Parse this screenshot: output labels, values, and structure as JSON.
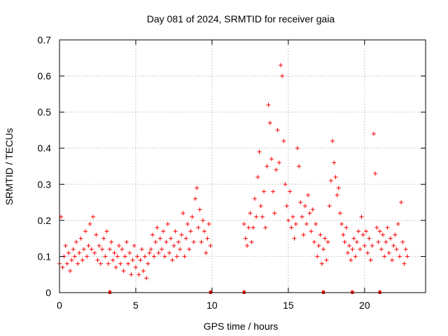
{
  "chart_data": {
    "type": "scatter",
    "title": "Day 081 of 2024, SRMTID for receiver gaia",
    "xlabel": "GPS time / hours",
    "ylabel": "SRMTID / TECUs",
    "xlim": [
      0,
      24
    ],
    "ylim": [
      0,
      0.7
    ],
    "xticks": [
      "0",
      "5",
      "10",
      "15",
      "20"
    ],
    "yticks": [
      "0",
      "0.1",
      "0.2",
      "0.3",
      "0.4",
      "0.5",
      "0.6",
      "0.7"
    ],
    "grid": true,
    "marker": "+",
    "marker_color": "#ff0000",
    "series": [
      {
        "name": "SRMTID",
        "points": [
          [
            0.0,
            0.08
          ],
          [
            0.1,
            0.21
          ],
          [
            0.2,
            0.07
          ],
          [
            0.3,
            0.1
          ],
          [
            0.4,
            0.13
          ],
          [
            0.5,
            0.08
          ],
          [
            0.6,
            0.11
          ],
          [
            0.7,
            0.06
          ],
          [
            0.8,
            0.09
          ],
          [
            0.9,
            0.12
          ],
          [
            1.0,
            0.1
          ],
          [
            1.1,
            0.14
          ],
          [
            1.2,
            0.08
          ],
          [
            1.3,
            0.11
          ],
          [
            1.4,
            0.15
          ],
          [
            1.5,
            0.09
          ],
          [
            1.6,
            0.12
          ],
          [
            1.7,
            0.17
          ],
          [
            1.8,
            0.1
          ],
          [
            1.9,
            0.13
          ],
          [
            2.0,
            0.19
          ],
          [
            2.1,
            0.12
          ],
          [
            2.2,
            0.21
          ],
          [
            2.3,
            0.11
          ],
          [
            2.4,
            0.16
          ],
          [
            2.5,
            0.09
          ],
          [
            2.6,
            0.13
          ],
          [
            2.7,
            0.08
          ],
          [
            2.8,
            0.12
          ],
          [
            2.9,
            0.15
          ],
          [
            3.0,
            0.1
          ],
          [
            3.1,
            0.17
          ],
          [
            3.2,
            0.08
          ],
          [
            3.3,
            0.12
          ],
          [
            3.4,
            0.14
          ],
          [
            3.5,
            0.09
          ],
          [
            3.6,
            0.11
          ],
          [
            3.7,
            0.07
          ],
          [
            3.8,
            0.1
          ],
          [
            3.9,
            0.13
          ],
          [
            4.0,
            0.08
          ],
          [
            4.1,
            0.12
          ],
          [
            4.2,
            0.06
          ],
          [
            4.3,
            0.1
          ],
          [
            4.4,
            0.14
          ],
          [
            4.5,
            0.08
          ],
          [
            4.6,
            0.11
          ],
          [
            4.7,
            0.05
          ],
          [
            4.8,
            0.09
          ],
          [
            4.9,
            0.13
          ],
          [
            5.0,
            0.07
          ],
          [
            5.1,
            0.1
          ],
          [
            5.2,
            0.05
          ],
          [
            5.3,
            0.09
          ],
          [
            5.4,
            0.12
          ],
          [
            5.5,
            0.06
          ],
          [
            5.6,
            0.1
          ],
          [
            5.7,
            0.04
          ],
          [
            5.8,
            0.08
          ],
          [
            5.9,
            0.11
          ],
          [
            6.0,
            0.12
          ],
          [
            6.1,
            0.16
          ],
          [
            6.2,
            0.1
          ],
          [
            6.3,
            0.14
          ],
          [
            6.4,
            0.18
          ],
          [
            6.5,
            0.11
          ],
          [
            6.6,
            0.15
          ],
          [
            6.7,
            0.12
          ],
          [
            6.8,
            0.17
          ],
          [
            6.9,
            0.1
          ],
          [
            7.0,
            0.14
          ],
          [
            7.1,
            0.19
          ],
          [
            7.2,
            0.11
          ],
          [
            7.3,
            0.15
          ],
          [
            7.4,
            0.09
          ],
          [
            7.5,
            0.13
          ],
          [
            7.6,
            0.17
          ],
          [
            7.7,
            0.1
          ],
          [
            7.8,
            0.14
          ],
          [
            7.9,
            0.12
          ],
          [
            8.0,
            0.16
          ],
          [
            8.1,
            0.22
          ],
          [
            8.2,
            0.1
          ],
          [
            8.3,
            0.15
          ],
          [
            8.4,
            0.19
          ],
          [
            8.5,
            0.12
          ],
          [
            8.6,
            0.17
          ],
          [
            8.7,
            0.21
          ],
          [
            8.8,
            0.14
          ],
          [
            8.9,
            0.26
          ],
          [
            9.0,
            0.29
          ],
          [
            9.1,
            0.18
          ],
          [
            9.2,
            0.23
          ],
          [
            9.3,
            0.14
          ],
          [
            9.4,
            0.2
          ],
          [
            9.5,
            0.17
          ],
          [
            9.6,
            0.11
          ],
          [
            9.7,
            0.15
          ],
          [
            9.8,
            0.19
          ],
          [
            9.9,
            0.13
          ],
          [
            12.1,
            0.19
          ],
          [
            12.2,
            0.15
          ],
          [
            12.3,
            0.13
          ],
          [
            12.4,
            0.18
          ],
          [
            12.5,
            0.22
          ],
          [
            12.6,
            0.14
          ],
          [
            12.7,
            0.18
          ],
          [
            12.8,
            0.26
          ],
          [
            12.9,
            0.21
          ],
          [
            13.0,
            0.32
          ],
          [
            13.1,
            0.39
          ],
          [
            13.2,
            0.24
          ],
          [
            13.3,
            0.21
          ],
          [
            13.4,
            0.28
          ],
          [
            13.5,
            0.18
          ],
          [
            13.6,
            0.35
          ],
          [
            13.7,
            0.52
          ],
          [
            13.8,
            0.47
          ],
          [
            13.9,
            0.37
          ],
          [
            14.0,
            0.28
          ],
          [
            14.1,
            0.22
          ],
          [
            14.2,
            0.34
          ],
          [
            14.3,
            0.45
          ],
          [
            14.4,
            0.36
          ],
          [
            14.5,
            0.63
          ],
          [
            14.6,
            0.6
          ],
          [
            14.7,
            0.42
          ],
          [
            14.8,
            0.3
          ],
          [
            14.9,
            0.24
          ],
          [
            15.0,
            0.2
          ],
          [
            15.1,
            0.28
          ],
          [
            15.2,
            0.18
          ],
          [
            15.3,
            0.21
          ],
          [
            15.4,
            0.15
          ],
          [
            15.5,
            0.19
          ],
          [
            15.6,
            0.4
          ],
          [
            15.7,
            0.35
          ],
          [
            15.8,
            0.25
          ],
          [
            15.9,
            0.21
          ],
          [
            16.0,
            0.16
          ],
          [
            16.1,
            0.24
          ],
          [
            16.2,
            0.19
          ],
          [
            16.3,
            0.27
          ],
          [
            16.4,
            0.22
          ],
          [
            16.5,
            0.17
          ],
          [
            16.6,
            0.23
          ],
          [
            16.7,
            0.14
          ],
          [
            16.8,
            0.19
          ],
          [
            16.9,
            0.1
          ],
          [
            17.0,
            0.13
          ],
          [
            17.1,
            0.16
          ],
          [
            17.2,
            0.08
          ],
          [
            17.3,
            0.12
          ],
          [
            17.4,
            0.15
          ],
          [
            17.5,
            0.09
          ],
          [
            17.6,
            0.14
          ],
          [
            17.7,
            0.24
          ],
          [
            17.8,
            0.31
          ],
          [
            17.9,
            0.42
          ],
          [
            18.0,
            0.36
          ],
          [
            18.1,
            0.32
          ],
          [
            18.2,
            0.27
          ],
          [
            18.3,
            0.29
          ],
          [
            18.4,
            0.22
          ],
          [
            18.5,
            0.19
          ],
          [
            18.6,
            0.16
          ],
          [
            18.7,
            0.14
          ],
          [
            18.8,
            0.18
          ],
          [
            18.9,
            0.11
          ],
          [
            19.0,
            0.13
          ],
          [
            19.1,
            0.09
          ],
          [
            19.2,
            0.12
          ],
          [
            19.3,
            0.15
          ],
          [
            19.4,
            0.1
          ],
          [
            19.5,
            0.14
          ],
          [
            19.6,
            0.17
          ],
          [
            19.7,
            0.12
          ],
          [
            19.8,
            0.21
          ],
          [
            19.9,
            0.16
          ],
          [
            20.0,
            0.13
          ],
          [
            20.1,
            0.17
          ],
          [
            20.2,
            0.11
          ],
          [
            20.3,
            0.15
          ],
          [
            20.4,
            0.09
          ],
          [
            20.5,
            0.13
          ],
          [
            20.6,
            0.44
          ],
          [
            20.7,
            0.33
          ],
          [
            20.8,
            0.18
          ],
          [
            20.9,
            0.14
          ],
          [
            21.0,
            0.17
          ],
          [
            21.1,
            0.12
          ],
          [
            21.2,
            0.16
          ],
          [
            21.3,
            0.1
          ],
          [
            21.4,
            0.14
          ],
          [
            21.5,
            0.18
          ],
          [
            21.6,
            0.11
          ],
          [
            21.7,
            0.15
          ],
          [
            21.8,
            0.09
          ],
          [
            21.9,
            0.13
          ],
          [
            22.0,
            0.16
          ],
          [
            22.1,
            0.12
          ],
          [
            22.2,
            0.19
          ],
          [
            22.3,
            0.1
          ],
          [
            22.4,
            0.25
          ],
          [
            22.5,
            0.14
          ],
          [
            22.6,
            0.08
          ],
          [
            22.7,
            0.12
          ],
          [
            22.8,
            0.1
          ]
        ]
      }
    ],
    "zero_markers_x": [
      3.3,
      9.9,
      12.1,
      17.3,
      19.2,
      21.0
    ]
  }
}
